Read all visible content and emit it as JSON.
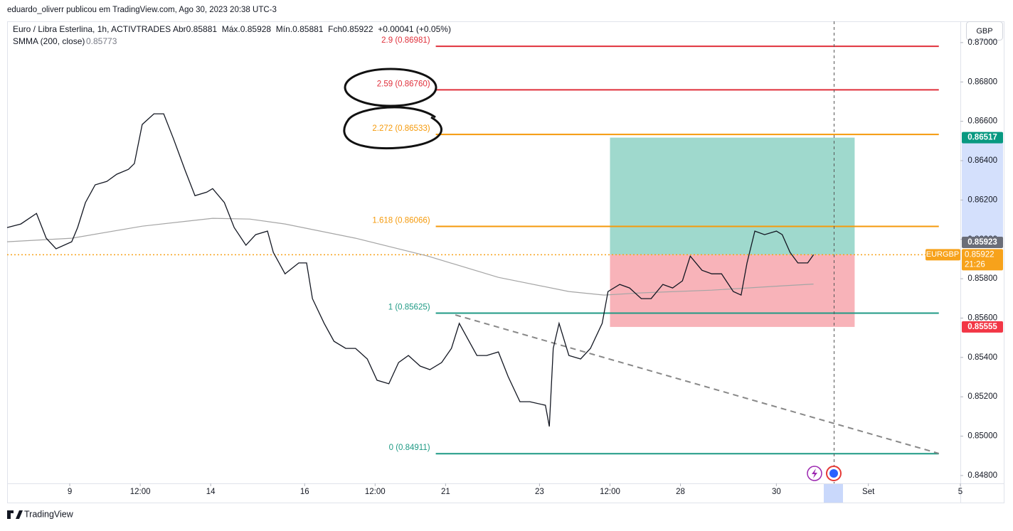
{
  "header": {
    "attribution": "eduardo_oliverr publicou em TradingView.com, Ago 30, 2023 20:38 UTC-3"
  },
  "legend": {
    "symbol": "Euro / Libra Esterlina, 1h, ACTIVTRADES",
    "ohlc": "Abr0.85881  Máx.0.85928  Mín.0.85881  Fch0.85922  +0.00041 (+0.05%)",
    "indicator_value": "0.85773"
  },
  "currency": "GBP",
  "footer": "TradingView",
  "chart_data": {
    "type": "line",
    "xlim": [
      0,
      487
    ],
    "ylim": [
      0.8476,
      0.87108
    ],
    "xticks": [
      {
        "value": 32,
        "label": "9"
      },
      {
        "value": 68,
        "label": "12:00"
      },
      {
        "value": 104,
        "label": "14"
      },
      {
        "value": 152,
        "label": "16"
      },
      {
        "value": 188,
        "label": "12:00"
      },
      {
        "value": 224,
        "label": "21"
      },
      {
        "value": 272,
        "label": "23"
      },
      {
        "value": 308,
        "label": "12:00"
      },
      {
        "value": 344,
        "label": "28"
      },
      {
        "value": 393,
        "label": "30"
      },
      {
        "value": 440,
        "label": "Set"
      },
      {
        "value": 487,
        "label": "5"
      }
    ],
    "yticks": [
      {
        "value": 0.848,
        "label": "0.84800"
      },
      {
        "value": 0.85,
        "label": "0.85000"
      },
      {
        "value": 0.852,
        "label": "0.85200"
      },
      {
        "value": 0.854,
        "label": "0.85400"
      },
      {
        "value": 0.856,
        "label": "0.85600"
      },
      {
        "value": 0.858,
        "label": "0.85800"
      },
      {
        "value": 0.86,
        "label": "0.86000"
      },
      {
        "value": 0.862,
        "label": "0.86200"
      },
      {
        "value": 0.864,
        "label": "0.86400"
      },
      {
        "value": 0.866,
        "label": "0.86600"
      },
      {
        "value": 0.868,
        "label": "0.86800"
      },
      {
        "value": 0.87,
        "label": "0.87000"
      }
    ],
    "series": [
      {
        "name": "EURGBP",
        "color": "#131722",
        "x": [
          0,
          7,
          15,
          20,
          25,
          33,
          36,
          40,
          45,
          51,
          56,
          62,
          65,
          69,
          75,
          80,
          85,
          91,
          96,
          102,
          105,
          111,
          116,
          122,
          127,
          133,
          136,
          142,
          149,
          153,
          156,
          162,
          167,
          173,
          178,
          184,
          189,
          195,
          200,
          205,
          211,
          216,
          222,
          227,
          231,
          236,
          240,
          245,
          251,
          256,
          262,
          267,
          275,
          277,
          279,
          282,
          287,
          293,
          298,
          304,
          307,
          313,
          318,
          324,
          329,
          335,
          340,
          345,
          349,
          355,
          360,
          365,
          371,
          375,
          378,
          382,
          387,
          393,
          396,
          400,
          404,
          409,
          412
        ],
        "values": [
          0.8606,
          0.86078,
          0.86132,
          0.86006,
          0.85952,
          0.85988,
          0.8606,
          0.86187,
          0.86277,
          0.86295,
          0.86331,
          0.86356,
          0.86385,
          0.86584,
          0.86638,
          0.86638,
          0.86511,
          0.86349,
          0.86222,
          0.8624,
          0.86258,
          0.86187,
          0.8606,
          0.8597,
          0.86024,
          0.86042,
          0.85934,
          0.85825,
          0.8588,
          0.8588,
          0.85699,
          0.85573,
          0.85482,
          0.85446,
          0.85446,
          0.85392,
          0.85284,
          0.85266,
          0.85374,
          0.8541,
          0.85356,
          0.85338,
          0.85374,
          0.85446,
          0.85573,
          0.85482,
          0.8541,
          0.8541,
          0.85428,
          0.85302,
          0.85175,
          0.85175,
          0.85157,
          0.85049,
          0.85446,
          0.85573,
          0.8541,
          0.85392,
          0.85446,
          0.85573,
          0.85735,
          0.85771,
          0.85753,
          0.85699,
          0.85699,
          0.85771,
          0.85753,
          0.85789,
          0.85915,
          0.85843,
          0.85825,
          0.85825,
          0.85735,
          0.85717,
          0.8588,
          0.86042,
          0.86024,
          0.86042,
          0.86024,
          0.85934,
          0.8588,
          0.8588,
          0.85922
        ]
      },
      {
        "name": "SMMA (200, close)",
        "color": "#a5a5a5",
        "x": [
          0,
          33,
          69,
          105,
          124,
          142,
          178,
          215,
          251,
          287,
          305,
          324,
          360,
          396,
          412
        ],
        "values": [
          0.85988,
          0.86006,
          0.86067,
          0.86107,
          0.86103,
          0.86078,
          0.86006,
          0.85915,
          0.85807,
          0.85735,
          0.85717,
          0.85728,
          0.85742,
          0.85764,
          0.85773
        ]
      }
    ],
    "last_price": 0.85922,
    "last_price_color": "#f7a21b",
    "countdown": "21:26",
    "fib_levels": [
      {
        "label": "2.9 (0.86981)",
        "value": 0.86981,
        "color": "#e0303b"
      },
      {
        "label": "2.59 (0.86760)",
        "value": 0.8676,
        "color": "#e0303b"
      },
      {
        "label": "2.272 (0.86533)",
        "value": 0.86533,
        "color": "#f59a0b"
      },
      {
        "label": "1.618 (0.86066)",
        "value": 0.86066,
        "color": "#f59a0b"
      },
      {
        "label": "1 (0.85625)",
        "value": 0.85625,
        "color": "#1f9a85"
      },
      {
        "label": "0 (0.84911)",
        "value": 0.84911,
        "color": "#1f9a85"
      }
    ],
    "fib_x": [
      219,
      476
    ],
    "trendline": {
      "x": [
        229,
        476
      ],
      "values": [
        0.85616,
        0.84912
      ],
      "color": "#888888"
    },
    "position": {
      "x": [
        308,
        433
      ],
      "entry": 0.85923,
      "target": 0.86517,
      "stop": 0.85555,
      "target_color": "#089981",
      "entry_color": "#6a6d78",
      "stop_color": "#f23645"
    }
  }
}
